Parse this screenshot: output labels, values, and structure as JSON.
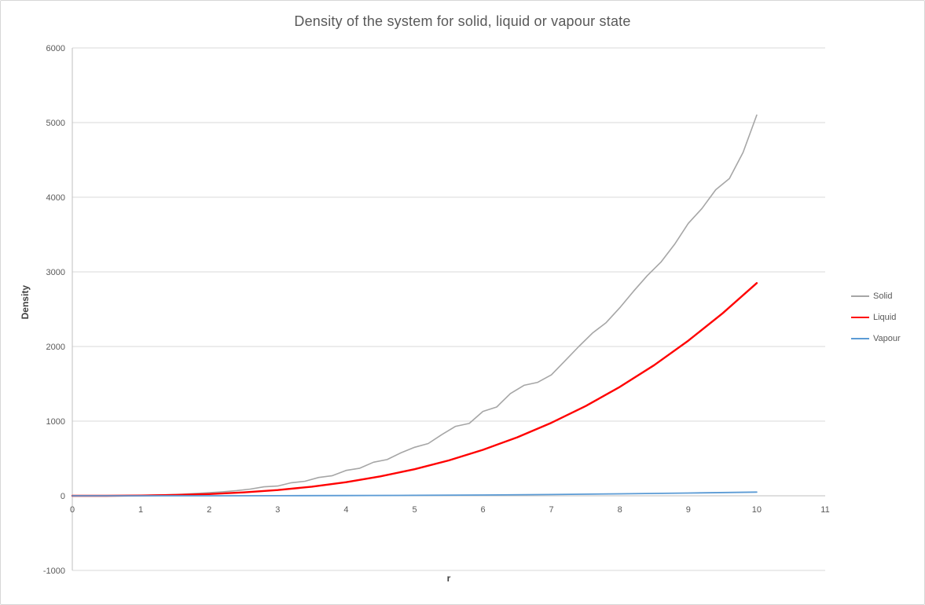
{
  "chart_data": {
    "type": "line",
    "title": "Density of the system for solid, liquid or vapour state",
    "xlabel": "r",
    "ylabel": "Density",
    "xlim": [
      0,
      11
    ],
    "ylim": [
      -1000,
      6000
    ],
    "x_ticks": [
      0,
      1,
      2,
      3,
      4,
      5,
      6,
      7,
      8,
      9,
      10,
      11
    ],
    "y_ticks": [
      -1000,
      0,
      1000,
      2000,
      3000,
      4000,
      5000,
      6000
    ],
    "grid": "horizontal",
    "legend_position": "right",
    "colors": {
      "grid": "#d9d9d9",
      "axis": "#bfbfbf",
      "text": "#595959"
    },
    "series": [
      {
        "name": "Solid",
        "color": "#a6a6a6",
        "width": 1.6,
        "x": [
          0,
          0.2,
          0.4,
          0.6,
          0.8,
          1,
          1.2,
          1.4,
          1.6,
          1.8,
          2,
          2.2,
          2.4,
          2.6,
          2.8,
          3,
          3.2,
          3.4,
          3.6,
          3.8,
          4,
          4.2,
          4.4,
          4.6,
          4.8,
          5,
          5.2,
          5.4,
          5.6,
          5.8,
          6,
          6.2,
          6.4,
          6.6,
          6.8,
          7,
          7.2,
          7.4,
          7.6,
          7.8,
          8,
          8.2,
          8.4,
          8.6,
          8.8,
          9,
          9.2,
          9.4,
          9.6,
          9.8,
          10
        ],
        "values": [
          0,
          0,
          0.3,
          1,
          3,
          5,
          9,
          14,
          21,
          30,
          41,
          54,
          70,
          90,
          120,
          130,
          175,
          195,
          245,
          270,
          340,
          370,
          450,
          485,
          575,
          650,
          700,
          820,
          930,
          970,
          1130,
          1190,
          1370,
          1480,
          1520,
          1620,
          1810,
          2000,
          2180,
          2320,
          2520,
          2740,
          2950,
          3130,
          3370,
          3650,
          3850,
          4100,
          4250,
          4600,
          5100
        ]
      },
      {
        "name": "Liquid",
        "color": "#ff0000",
        "width": 2.4,
        "x": [
          0,
          0.5,
          1,
          1.5,
          2,
          2.5,
          3,
          3.5,
          4,
          4.5,
          5,
          5.5,
          6,
          6.5,
          7,
          7.5,
          8,
          8.5,
          9,
          9.5,
          10
        ],
        "values": [
          0,
          0.4,
          3,
          10,
          23,
          45,
          77,
          122,
          182,
          260,
          356,
          474,
          616,
          783,
          978,
          1202,
          1459,
          1750,
          2078,
          2444,
          2850
        ]
      },
      {
        "name": "Vapour",
        "color": "#5b9bd5",
        "width": 1.8,
        "x": [
          0,
          1,
          2,
          3,
          4,
          5,
          6,
          7,
          8,
          9,
          10
        ],
        "values": [
          0,
          0.1,
          0.4,
          1.4,
          3.2,
          6.3,
          11,
          17,
          26,
          37,
          50
        ]
      }
    ]
  }
}
